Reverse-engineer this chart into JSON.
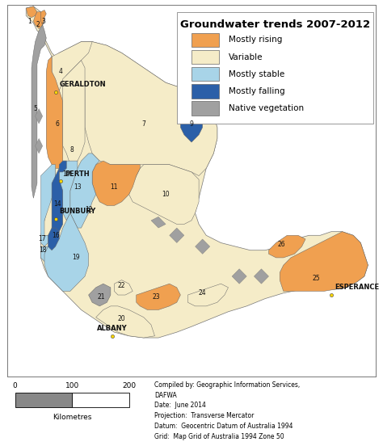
{
  "title": "Groundwater trends 2007-2012",
  "legend_items": [
    {
      "label": "Mostly rising",
      "color": "#F0A050"
    },
    {
      "label": "Variable",
      "color": "#F5ECC8"
    },
    {
      "label": "Mostly stable",
      "color": "#A8D4E8"
    },
    {
      "label": "Mostly falling",
      "color": "#2B5FA8"
    },
    {
      "label": "Native vegetation",
      "color": "#A0A0A0"
    }
  ],
  "scalebar_text": "Kilometres",
  "scalebar_ticks": [
    "0",
    "100",
    "200"
  ],
  "metadata_lines": [
    "Compiled by: Geographic Information Services,",
    "DAFWA",
    "Date:  June 2014",
    "Projection:  Transverse Mercator",
    "Datum:  Geocentric Datum of Australia 1994",
    "Grid:  Map Grid of Australia 1994 Zone 50"
  ],
  "map_border_color": "#888888",
  "outer_bg": "#FFFFFF",
  "ocean_bg": "#FFFFFF",
  "title_fontsize": 9.5,
  "legend_fontsize": 7.5,
  "city_fontsize": 6,
  "number_fontsize": 5.5,
  "meta_fontsize": 5.5
}
